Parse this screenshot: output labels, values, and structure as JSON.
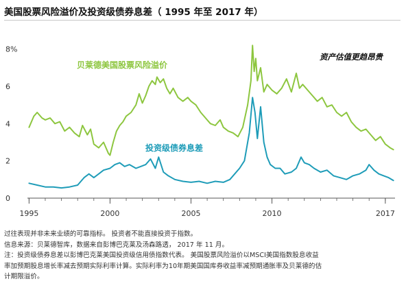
{
  "title": "美国股票风险溢价及投资级债券息差（ 1995 年至 2017 年）",
  "chart_data": {
    "type": "line",
    "x_range": [
      1994.9,
      2017.6
    ],
    "ylim": [
      0,
      8.5
    ],
    "y_ticks": [
      0,
      2,
      4,
      6,
      8
    ],
    "y_tick_labels": [
      "0",
      "2",
      "4",
      "6",
      "8%"
    ],
    "x_ticks": [
      1995,
      2000,
      2005,
      2010,
      2017
    ],
    "x_tick_labels": [
      "1995",
      "2000",
      "2005",
      "2010",
      "2017"
    ],
    "annotation": "资产估值更趋昂贵",
    "colors": {
      "erp": "#8dc63f",
      "spread": "#1e9cb8",
      "axis": "#555555"
    },
    "series": [
      {
        "name": "贝莱德美国股票风险溢价",
        "x": [
          1995.0,
          1995.3,
          1995.5,
          1995.8,
          1996.0,
          1996.3,
          1996.6,
          1996.9,
          1997.2,
          1997.5,
          1997.8,
          1998.1,
          1998.3,
          1998.6,
          1998.8,
          1999.0,
          1999.3,
          1999.6,
          1999.9,
          2000.0,
          2000.2,
          2000.4,
          2000.6,
          2000.8,
          2001.0,
          2001.3,
          2001.6,
          2001.8,
          2002.0,
          2002.2,
          2002.4,
          2002.6,
          2002.8,
          2002.9,
          2003.1,
          2003.3,
          2003.5,
          2003.7,
          2003.9,
          2004.2,
          2004.5,
          2004.8,
          2005.0,
          2005.3,
          2005.6,
          2005.9,
          2006.2,
          2006.5,
          2006.8,
          2007.0,
          2007.3,
          2007.6,
          2007.9,
          2008.2,
          2008.5,
          2008.7,
          2008.8,
          2008.9,
          2009.0,
          2009.1,
          2009.3,
          2009.5,
          2009.7,
          2010.0,
          2010.3,
          2010.6,
          2010.9,
          2011.2,
          2011.5,
          2011.7,
          2011.9,
          2012.2,
          2012.5,
          2012.8,
          2013.1,
          2013.4,
          2013.7,
          2014.0,
          2014.3,
          2014.6,
          2014.9,
          2015.2,
          2015.5,
          2015.8,
          2016.1,
          2016.4,
          2016.7,
          2017.0,
          2017.3,
          2017.5
        ],
        "values": [
          3.8,
          4.4,
          4.6,
          4.3,
          4.2,
          4.3,
          4.0,
          4.1,
          3.6,
          3.8,
          3.5,
          3.3,
          3.9,
          3.4,
          3.7,
          2.9,
          2.7,
          3.0,
          2.4,
          2.3,
          3.0,
          3.6,
          3.9,
          4.1,
          4.4,
          4.6,
          5.0,
          5.6,
          5.1,
          5.5,
          6.0,
          6.3,
          6.1,
          6.5,
          6.2,
          6.4,
          5.9,
          5.6,
          5.9,
          5.4,
          5.2,
          5.4,
          5.2,
          5.0,
          4.6,
          4.3,
          4.0,
          3.9,
          4.2,
          3.8,
          3.6,
          3.5,
          3.3,
          3.8,
          5.0,
          6.3,
          8.2,
          6.8,
          7.5,
          6.3,
          7.0,
          5.7,
          6.1,
          5.8,
          5.6,
          5.9,
          6.4,
          5.7,
          6.7,
          5.9,
          6.1,
          5.8,
          5.5,
          5.2,
          5.4,
          4.9,
          5.0,
          4.6,
          4.4,
          4.6,
          4.1,
          3.8,
          3.6,
          3.7,
          3.4,
          3.1,
          3.3,
          2.9,
          2.7,
          2.6
        ]
      },
      {
        "name": "投资级债券息差",
        "x": [
          1995.0,
          1995.5,
          1996.0,
          1996.5,
          1997.0,
          1997.5,
          1998.0,
          1998.4,
          1998.7,
          1999.0,
          1999.3,
          1999.6,
          2000.0,
          2000.3,
          2000.6,
          2000.9,
          2001.2,
          2001.6,
          2001.9,
          2002.2,
          2002.5,
          2002.8,
          2003.0,
          2003.3,
          2003.6,
          2004.0,
          2004.5,
          2005.0,
          2005.5,
          2006.0,
          2006.5,
          2007.0,
          2007.4,
          2007.7,
          2008.0,
          2008.3,
          2008.6,
          2008.8,
          2008.95,
          2009.1,
          2009.3,
          2009.5,
          2009.7,
          2009.9,
          2010.2,
          2010.5,
          2010.8,
          2011.2,
          2011.5,
          2011.8,
          2012.0,
          2012.3,
          2012.6,
          2013.0,
          2013.4,
          2013.8,
          2014.2,
          2014.6,
          2015.0,
          2015.4,
          2015.8,
          2016.0,
          2016.3,
          2016.6,
          2016.9,
          2017.2,
          2017.5
        ],
        "values": [
          0.8,
          0.7,
          0.6,
          0.6,
          0.55,
          0.6,
          0.7,
          1.1,
          1.3,
          1.1,
          1.3,
          1.5,
          1.6,
          1.8,
          1.9,
          1.7,
          1.8,
          1.6,
          1.7,
          1.8,
          2.1,
          1.6,
          2.2,
          1.4,
          1.2,
          1.0,
          0.9,
          0.85,
          0.9,
          0.8,
          0.9,
          0.85,
          1.0,
          1.3,
          1.6,
          2.0,
          3.5,
          5.4,
          4.6,
          3.2,
          4.9,
          3.0,
          2.2,
          1.8,
          1.6,
          1.6,
          1.3,
          1.4,
          1.6,
          2.2,
          1.9,
          1.8,
          1.6,
          1.4,
          1.5,
          1.2,
          1.1,
          1.0,
          1.2,
          1.3,
          1.5,
          1.8,
          1.5,
          1.3,
          1.2,
          1.1,
          0.95
        ]
      }
    ]
  },
  "notes": [
    "过往表现并非未来业绩的可靠指标。 投资者不能直接投资于指数。",
    "信息来源：贝莱德智库，数据来自彭博巴克莱及汤森路透， 2017 年 11 月。",
    "注：投资级债券息差以彭博巴克莱美国投资级信用债指数代表。 美国股票风险溢价以MSCI美国指数股息收益",
    "率加预期股息增长率减去预期实际利率计算。实际利率为10年期美国国库券收益率减预期通胀率及贝莱德的估",
    "计期限溢价。"
  ]
}
